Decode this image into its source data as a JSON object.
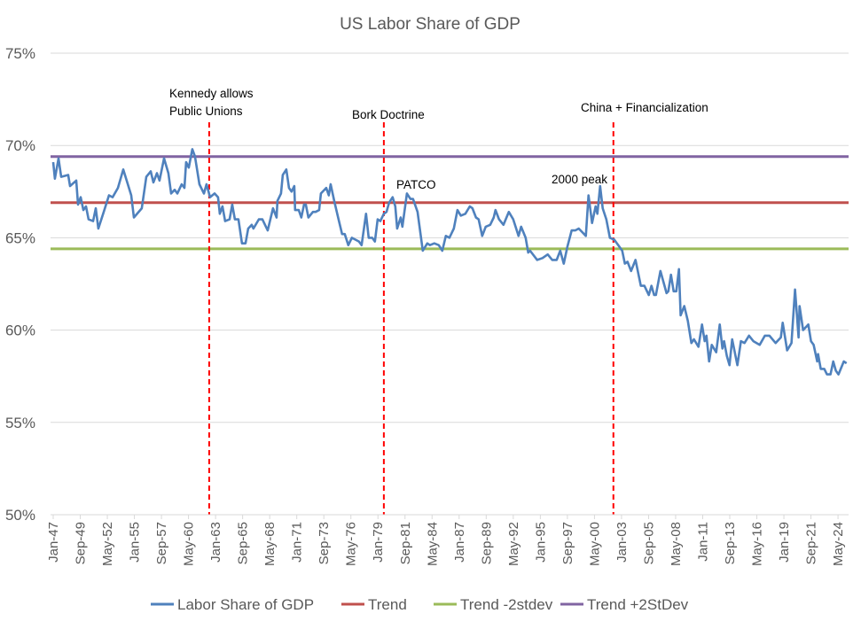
{
  "chart_data": {
    "type": "line",
    "title": "US Labor Share of GDP",
    "xlabel": "",
    "ylabel": "",
    "ylim": [
      50,
      75
    ],
    "xlim": [
      1947.0,
      2025.2
    ],
    "y_ticks": [
      "50%",
      "55%",
      "60%",
      "65%",
      "70%",
      "75%"
    ],
    "y_tick_values": [
      50,
      55,
      60,
      65,
      70,
      75
    ],
    "x_tick_labels": [
      "Jan-47",
      "Sep-49",
      "May-52",
      "Jan-55",
      "Sep-57",
      "May-60",
      "Jan-63",
      "Sep-65",
      "May-68",
      "Jan-71",
      "Sep-73",
      "May-76",
      "Jan-79",
      "Sep-81",
      "May-84",
      "Jan-87",
      "Sep-89",
      "May-92",
      "Jan-95",
      "Sep-97",
      "May-00",
      "Jan-03",
      "Sep-05",
      "May-08",
      "Jan-11",
      "Sep-13",
      "May-16",
      "Jan-19",
      "Sep-21",
      "May-24"
    ],
    "x_tick_start_year": 1947.0,
    "x_tick_step_months": 32,
    "grid": true,
    "legend_position": "bottom",
    "series": [
      {
        "name": "Labor Share of GDP",
        "color": "#4F81BD",
        "x": [
          1947.0,
          1947.17,
          1947.52,
          1947.79,
          1948.48,
          1948.66,
          1949.27,
          1949.45,
          1949.71,
          1949.97,
          1950.23,
          1950.49,
          1950.93,
          1951.19,
          1951.45,
          1951.98,
          1952.5,
          1952.85,
          1953.38,
          1953.9,
          1954.69,
          1954.95,
          1955.73,
          1956.17,
          1956.61,
          1956.87,
          1957.22,
          1957.48,
          1957.92,
          1958.35,
          1958.62,
          1958.97,
          1959.23,
          1959.66,
          1959.93,
          1960.1,
          1960.36,
          1960.71,
          1960.97,
          1961.41,
          1961.85,
          1962.11,
          1962.46,
          1962.9,
          1963.24,
          1963.42,
          1963.68,
          1963.94,
          1964.38,
          1964.64,
          1964.9,
          1965.25,
          1965.6,
          1965.95,
          1966.21,
          1966.56,
          1966.73,
          1967.26,
          1967.61,
          1968.14,
          1968.66,
          1969.01,
          1969.1,
          1969.45,
          1969.62,
          1969.97,
          1970.23,
          1970.49,
          1970.76,
          1970.84,
          1971.19,
          1971.45,
          1971.72,
          1971.89,
          1972.15,
          1972.59,
          1972.85,
          1973.2,
          1973.38,
          1973.9,
          1974.16,
          1974.34,
          1974.69,
          1975.12,
          1975.47,
          1975.73,
          1976.08,
          1976.43,
          1976.78,
          1977.13,
          1977.39,
          1977.83,
          1978.09,
          1978.44,
          1978.7,
          1978.97,
          1979.23,
          1979.58,
          1979.84,
          1980.1,
          1980.45,
          1980.71,
          1980.89,
          1981.24,
          1981.41,
          1981.85,
          1982.2,
          1982.46,
          1982.9,
          1983.42,
          1983.86,
          1984.12,
          1984.55,
          1984.99,
          1985.34,
          1985.69,
          1986.04,
          1986.48,
          1986.83,
          1987.17,
          1987.61,
          1988.05,
          1988.31,
          1988.66,
          1988.92,
          1989.27,
          1989.62,
          1990.06,
          1990.41,
          1990.58,
          1990.93,
          1991.37,
          1991.89,
          1992.33,
          1992.85,
          1993.11,
          1993.55,
          1993.81,
          1993.99,
          1994.69,
          1995.21,
          1995.73,
          1996.17,
          1996.61,
          1996.96,
          1997.31,
          1997.66,
          1998.09,
          1998.44,
          1998.79,
          1999.14,
          1999.49,
          1999.75,
          2000.1,
          2000.45,
          2000.62,
          2000.89,
          2001.15,
          2001.5,
          2001.85,
          2002.28,
          2002.81,
          2003.07,
          2003.33,
          2003.59,
          2003.94,
          2004.38,
          2004.9,
          2005.25,
          2005.69,
          2005.95,
          2006.21,
          2006.39,
          2006.83,
          2007.44,
          2007.61,
          2007.87,
          2008.14,
          2008.4,
          2008.66,
          2008.83,
          2009.18,
          2009.53,
          2009.88,
          2010.14,
          2010.58,
          2010.93,
          2011.19,
          2011.37,
          2011.63,
          2011.89,
          2012.33,
          2012.68,
          2012.94,
          2013.11,
          2013.38,
          2013.64,
          2013.9,
          2014.42,
          2014.77,
          2015.12,
          2015.56,
          2015.99,
          2016.61,
          2017.13,
          2017.57,
          2018.18,
          2018.7,
          2018.88,
          2019.32,
          2019.75,
          2020.1,
          2020.45,
          2020.54,
          2020.89,
          2021.41,
          2021.67,
          2021.93,
          2022.28,
          2022.37,
          2022.63,
          2022.98,
          2023.24,
          2023.59,
          2023.86,
          2024.12,
          2024.38,
          2024.9,
          2025.17
        ],
        "y": [
          69.1,
          68.2,
          69.3,
          68.3,
          68.4,
          67.8,
          68.1,
          66.8,
          67.2,
          66.5,
          66.7,
          66.0,
          65.9,
          66.6,
          65.5,
          66.4,
          67.3,
          67.2,
          67.7,
          68.7,
          67.3,
          66.1,
          66.6,
          68.3,
          68.6,
          68.0,
          68.5,
          68.1,
          69.3,
          68.5,
          67.4,
          67.6,
          67.4,
          67.9,
          67.7,
          69.1,
          68.8,
          69.8,
          69.4,
          67.9,
          67.4,
          67.9,
          67.2,
          67.4,
          67.2,
          66.3,
          66.7,
          65.9,
          66.0,
          66.8,
          66.0,
          66.0,
          64.7,
          64.7,
          65.5,
          65.7,
          65.5,
          66.0,
          66.0,
          65.4,
          66.6,
          66.1,
          67.0,
          67.4,
          68.4,
          68.7,
          67.7,
          67.5,
          67.8,
          66.5,
          66.5,
          66.1,
          66.8,
          66.8,
          66.1,
          66.4,
          66.4,
          66.5,
          67.4,
          67.7,
          67.3,
          67.9,
          67.0,
          66.0,
          65.2,
          65.2,
          64.6,
          65.0,
          64.9,
          64.8,
          64.6,
          66.3,
          65.0,
          65.0,
          64.8,
          66.0,
          65.9,
          66.3,
          66.4,
          66.9,
          67.2,
          66.7,
          65.5,
          66.1,
          65.6,
          67.4,
          67.1,
          67.1,
          66.4,
          64.3,
          64.7,
          64.6,
          64.7,
          64.6,
          64.3,
          65.1,
          65.0,
          65.5,
          66.5,
          66.2,
          66.3,
          66.7,
          66.6,
          66.1,
          66.0,
          65.1,
          65.6,
          65.7,
          66.1,
          66.5,
          66.0,
          65.7,
          66.4,
          66.0,
          65.1,
          65.6,
          65.0,
          64.2,
          64.3,
          63.8,
          63.9,
          64.1,
          63.8,
          63.8,
          64.3,
          63.6,
          64.5,
          65.4,
          65.4,
          65.5,
          65.3,
          65.1,
          67.3,
          65.8,
          66.7,
          66.3,
          67.8,
          66.6,
          66.0,
          65.0,
          64.9,
          64.5,
          64.3,
          63.6,
          63.7,
          63.2,
          63.8,
          62.4,
          62.4,
          61.9,
          62.4,
          61.9,
          61.9,
          63.2,
          62.0,
          62.1,
          63.0,
          62.1,
          62.1,
          63.3,
          60.8,
          61.3,
          60.5,
          59.3,
          59.5,
          59.1,
          60.3,
          59.4,
          59.7,
          58.3,
          59.2,
          58.8,
          60.3,
          59.0,
          59.4,
          58.6,
          58.1,
          59.5,
          58.1,
          59.4,
          59.3,
          59.7,
          59.4,
          59.2,
          59.7,
          59.7,
          59.3,
          59.6,
          60.4,
          58.9,
          59.3,
          62.2,
          59.6,
          61.3,
          60.0,
          60.3,
          59.4,
          59.2,
          58.3,
          58.7,
          57.9,
          57.9,
          57.6,
          57.6,
          58.3,
          57.8,
          57.6,
          58.3,
          58.2
        ]
      },
      {
        "name": "Trend",
        "color": "#C0504D",
        "constant": 66.9
      },
      {
        "name": "Trend -2stdev",
        "color": "#9BBB59",
        "constant": 64.4
      },
      {
        "name": "Trend +2StDev",
        "color": "#8064A2",
        "constant": 69.4
      }
    ],
    "event_lines": [
      {
        "year": 1962.37,
        "color": "#FF0000"
      },
      {
        "year": 1979.58,
        "color": "#FF0000"
      },
      {
        "year": 2002.2,
        "color": "#FF0000"
      }
    ],
    "annotations": {
      "kennedy_line1": "Kennedy allows",
      "kennedy_line2": "Public Unions",
      "bork": "Bork Doctrine",
      "patco": "PATCO",
      "peak2000": "2000 peak",
      "china": "China + Financialization"
    }
  }
}
